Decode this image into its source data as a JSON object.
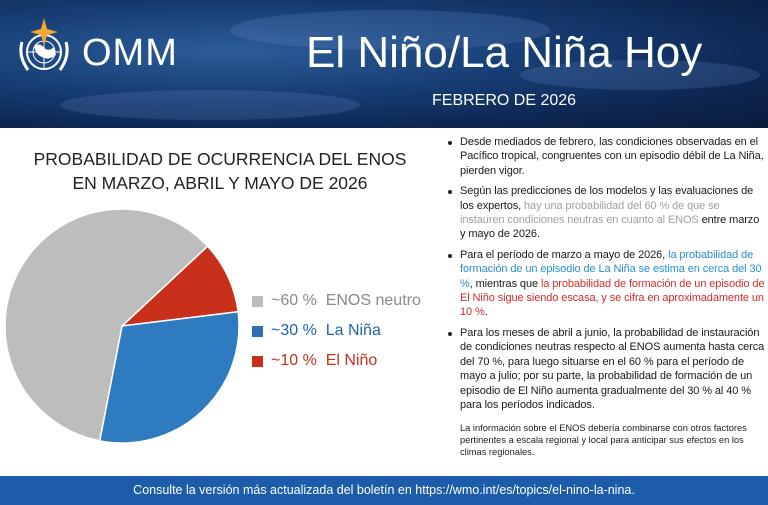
{
  "header": {
    "logo_text": "OMM",
    "title": "El Niño/La Niña Hoy",
    "subtitle": "FEBRERO DE 2026"
  },
  "chart_data": {
    "type": "pie",
    "title": [
      "PROBABILIDAD DE OCURRENCIA DEL ENOS",
      "EN MARZO, ABRIL Y MAYO DE 2026"
    ],
    "slices": [
      {
        "label": "ENOS neutro",
        "value_label": "~60 %",
        "value": 60,
        "color": "#bdbdbd"
      },
      {
        "label": "La Niña",
        "value_label": "~30 %",
        "value": 30,
        "color": "#2f7bbf"
      },
      {
        "label": "El Niño",
        "value_label": "~10 %",
        "value": 10,
        "color": "#c9301c"
      }
    ],
    "legend_placement": "right"
  },
  "legend_colors": {
    "neutro_text": "#8a8a8a",
    "nina_text": "#1e63ad",
    "nino_text": "#c9301c"
  },
  "bullets": {
    "b1": "Desde mediados de febrero, las condiciones observadas en el Pacífico tropical, congruentes con un episodio débil de La Niña, pierden vigor.",
    "b2a": "Según las predicciones de los modelos y las evaluaciones de los expertos, ",
    "b2b": "hay una probabilidad del 60 % de que se instauren condiciones neutras en cuanto al ENOS",
    "b2c": " entre marzo y mayo de 2026.",
    "b3a": "Para el período de marzo a mayo de 2026, ",
    "b3b": "la probabilidad de formación de un episodio de La Niña se estima en cerca del 30 %",
    "b3c": ", mientras que ",
    "b3d": "la probabilidad de formación de un episodio de El Niño sigue siendo escasa, y se cifra en aproximadamente un 10 %",
    "b3e": ".",
    "b4": "Para los meses de abril a junio, la probabilidad de instauración de condiciones neutras respecto al ENOS aumenta hasta cerca del 70 %, para luego situarse en el 60 % para el período de mayo a julio; por su parte, la probabilidad de formación de un episodio de El Niño aumenta gradualmente del 30 % al 40 % para los períodos indicados."
  },
  "note": "La información sobre el ENOS debería combinarse con otros factores pertinentes a escala regional y local para anticipar sus efectos en los climas regionales.",
  "footer": "Consulte la versión más actualizada del boletín en https://wmo.int/es/topics/el-nino-la-nina."
}
